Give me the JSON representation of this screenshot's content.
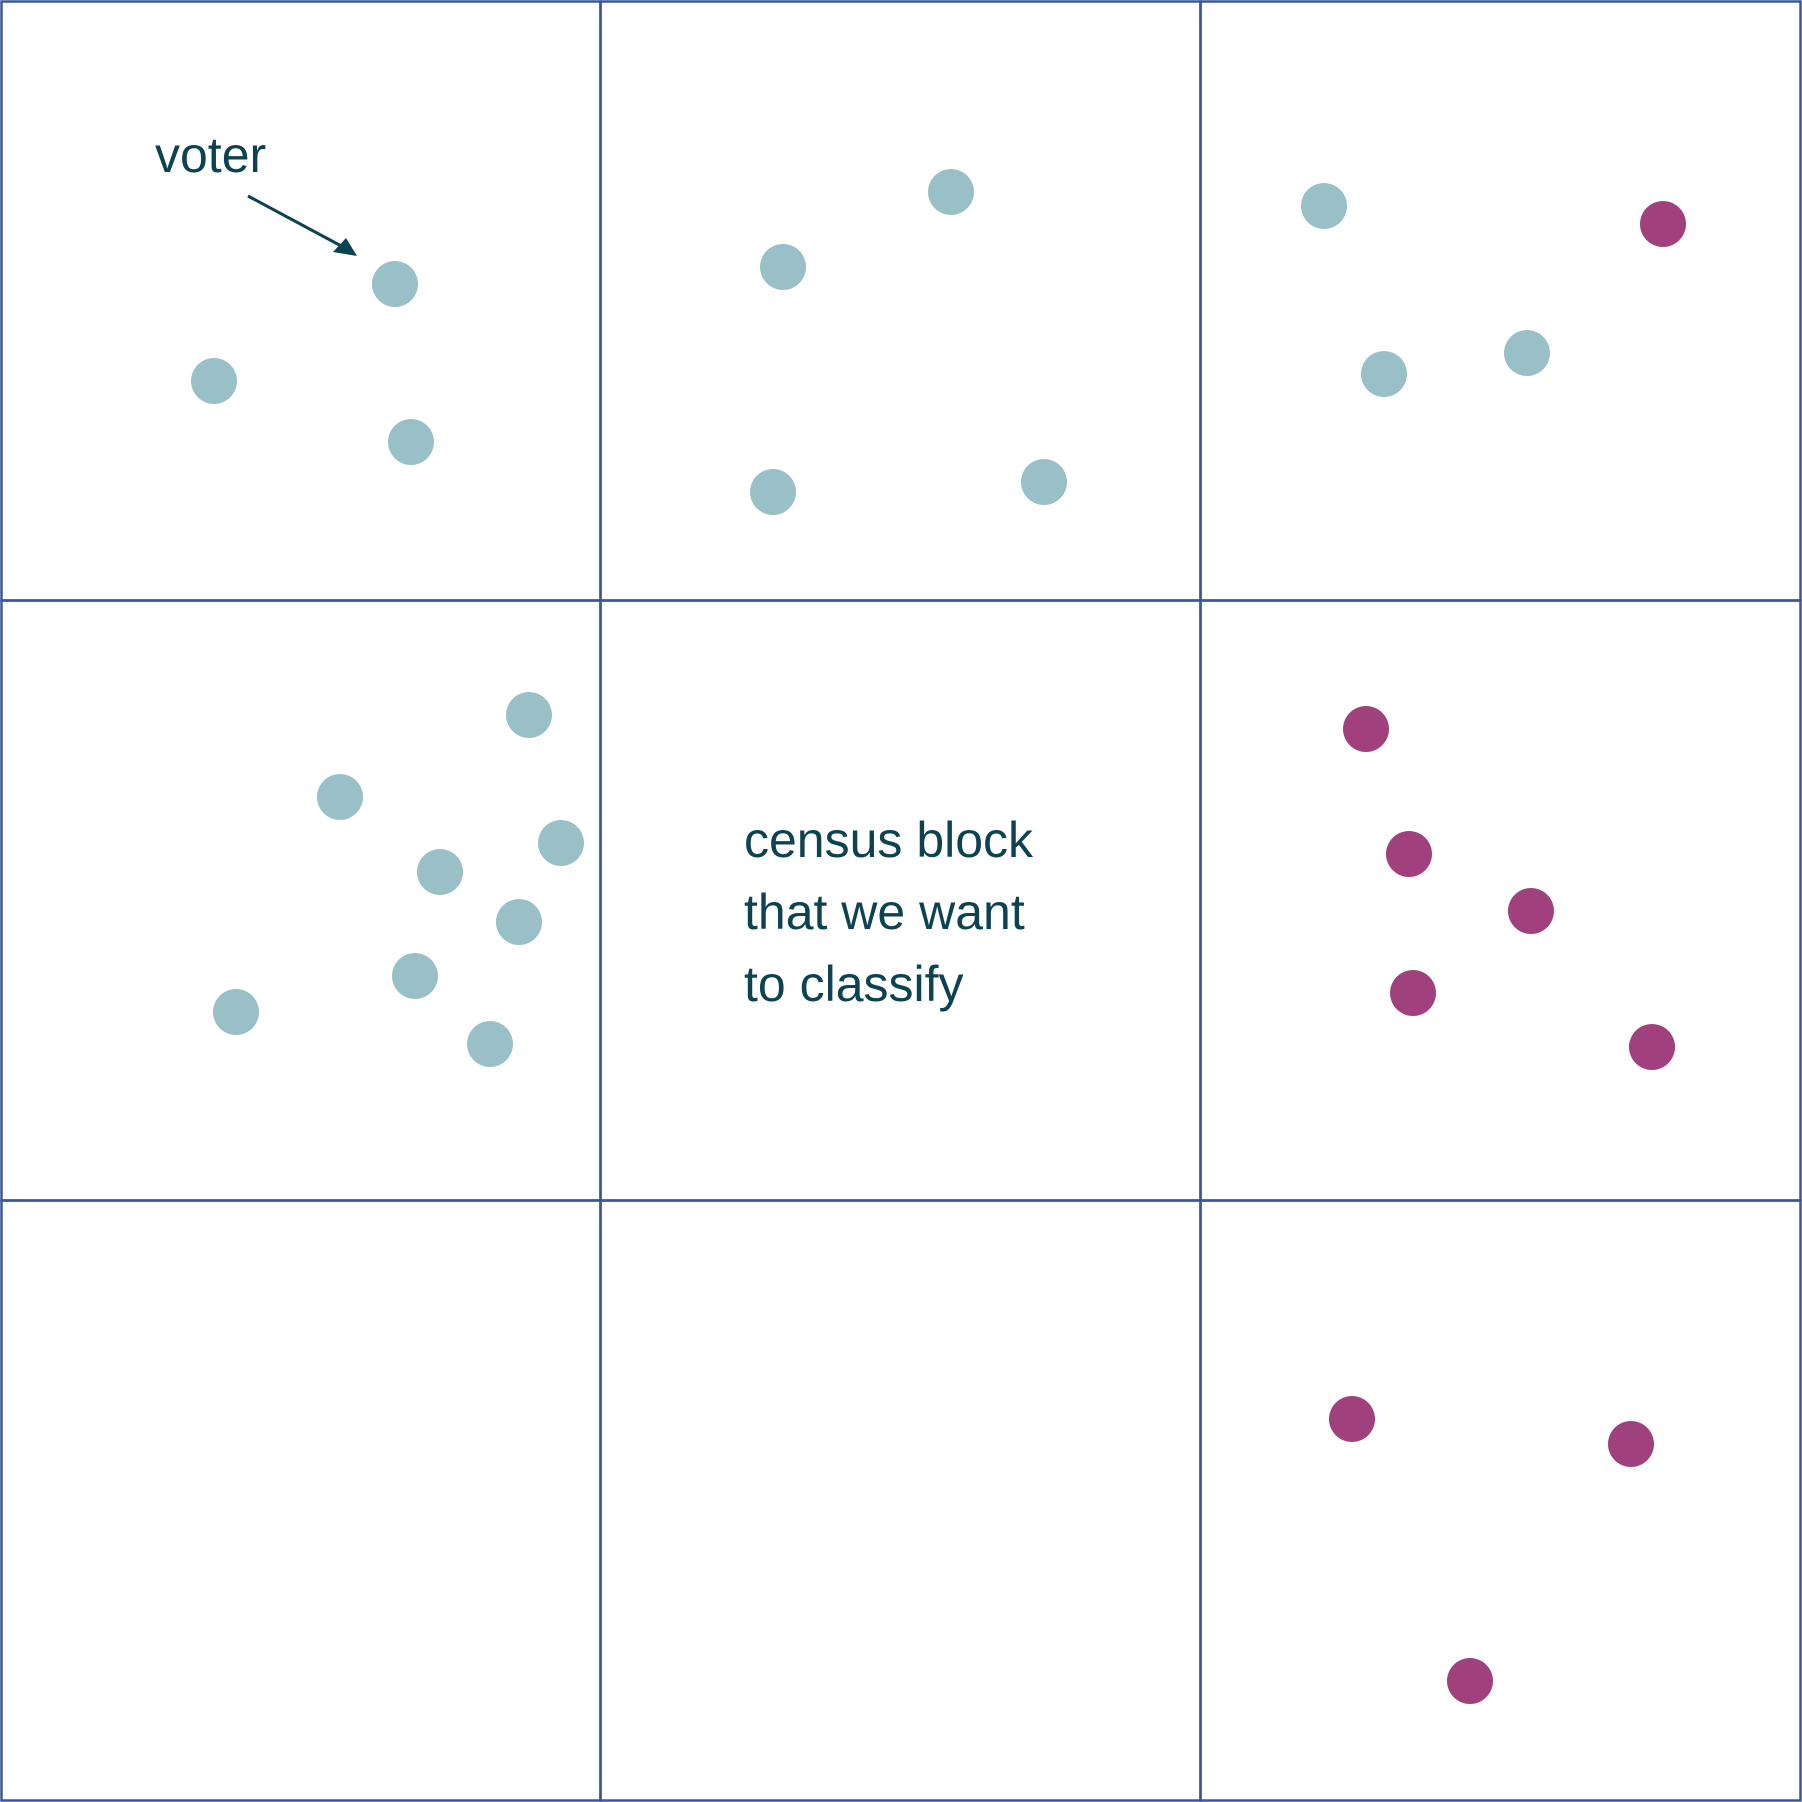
{
  "colors": {
    "grid_line": "#3a5896",
    "blue_voter": "#99c0c7",
    "purple_voter": "#a0417d",
    "text": "#0d4351"
  },
  "labels": {
    "voter": "voter",
    "center_line_1": "census block",
    "center_line_2": "that we want",
    "center_line_3": "to classify"
  },
  "grid": {
    "rows": 3,
    "cols": 3
  },
  "icons": {
    "pointer": "arrow-icon"
  }
}
